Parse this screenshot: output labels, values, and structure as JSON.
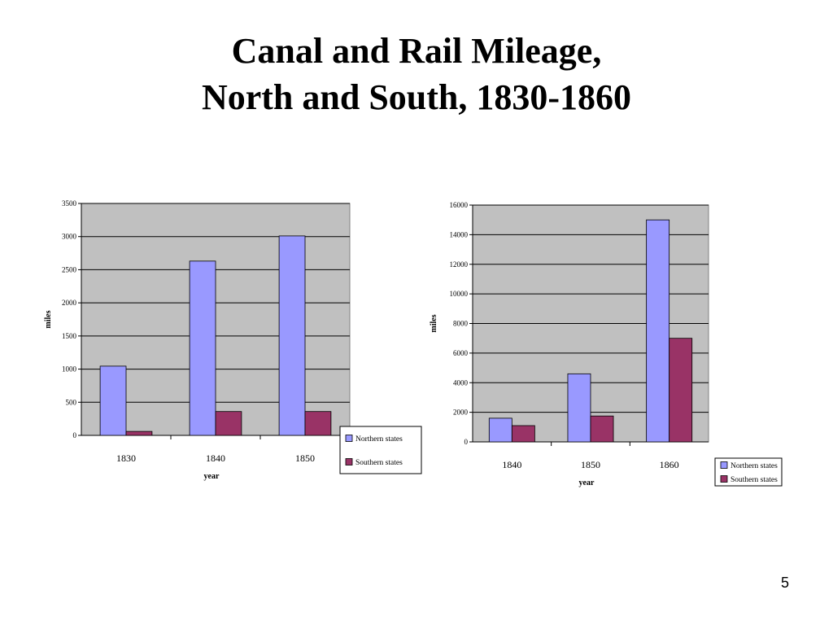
{
  "slide": {
    "title_line1": "Canal and Rail Mileage,",
    "title_line2": "North and South, 1830-1860",
    "page_number": "5"
  },
  "colors": {
    "northern": "#9999ff",
    "southern": "#993366",
    "plot_area": "#c0c0c0"
  },
  "chart_data": [
    {
      "type": "bar",
      "categories": [
        "1830",
        "1840",
        "1850"
      ],
      "series": [
        {
          "name": "Northern states",
          "values": [
            1045,
            2630,
            3010
          ]
        },
        {
          "name": "Southern states",
          "values": [
            60,
            360,
            360
          ]
        }
      ],
      "xlabel": "year",
      "ylabel": "miles",
      "ylim": [
        0,
        3500
      ],
      "yticks": [
        0,
        500,
        1000,
        1500,
        2000,
        2500,
        3000,
        3500
      ],
      "grid": true,
      "legend": "right"
    },
    {
      "type": "bar",
      "categories": [
        "1840",
        "1850",
        "1860"
      ],
      "series": [
        {
          "name": "Northern states",
          "values": [
            1600,
            4600,
            15000
          ]
        },
        {
          "name": "Southern states",
          "values": [
            1100,
            1750,
            7000
          ]
        }
      ],
      "xlabel": "year",
      "ylabel": "miles",
      "ylim": [
        0,
        16000
      ],
      "yticks": [
        0,
        2000,
        4000,
        6000,
        8000,
        10000,
        12000,
        14000,
        16000
      ],
      "grid": true,
      "legend": "right"
    }
  ]
}
